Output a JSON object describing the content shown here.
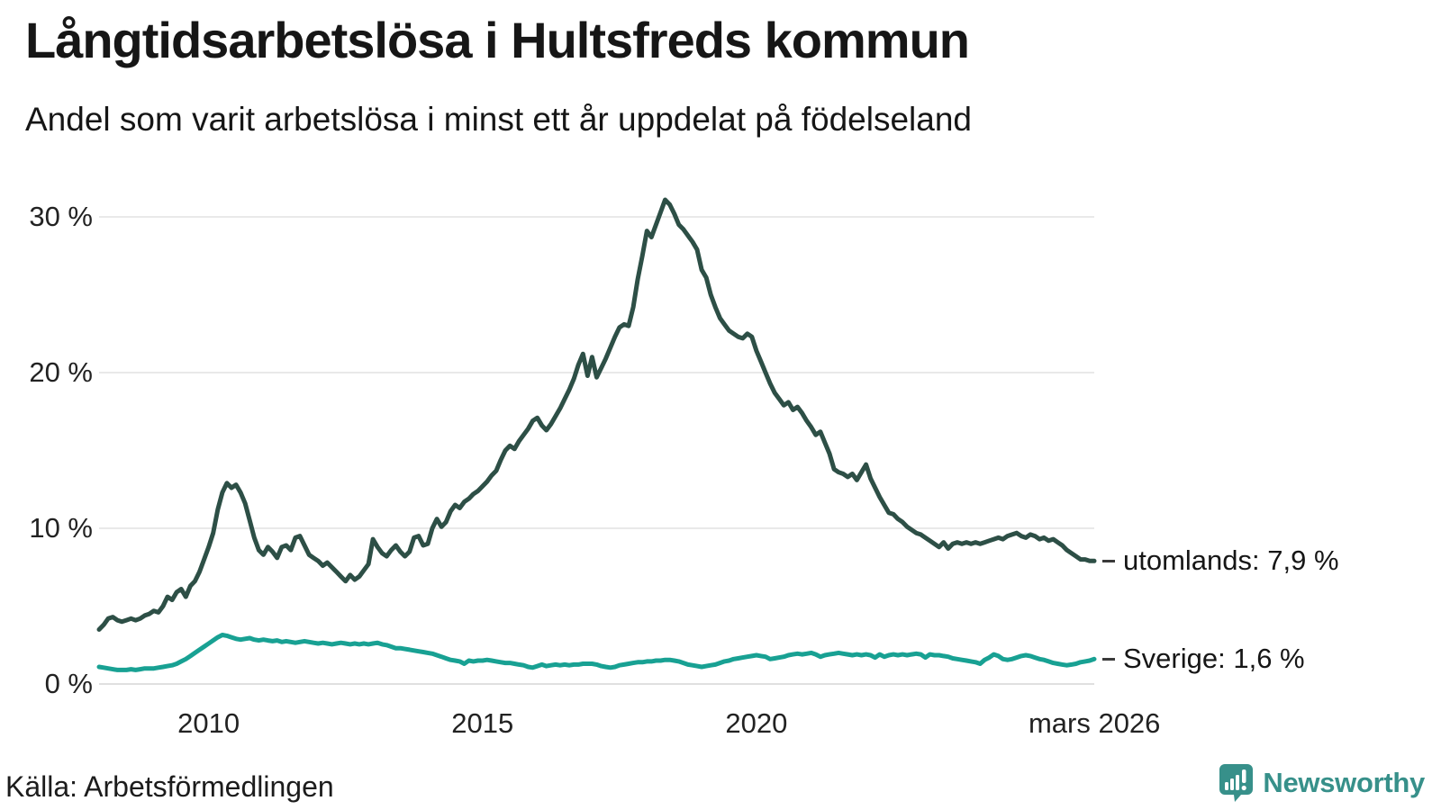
{
  "header": {
    "title": "Långtidsarbetslösa i Hultsfreds kommun",
    "subtitle": "Andel som varit arbetslösa i minst ett år uppdelat på födelseland"
  },
  "footer": {
    "source": "Källa: Arbetsförmedlingen",
    "brand": "Newsworthy"
  },
  "colors": {
    "utomlands_line": "#2d4f46",
    "sverige_line": "#18a193",
    "gridline": "#e9e9e9",
    "zero_gridline": "#e0e0e0",
    "brand_teal": "#37908a",
    "text": "#161616"
  },
  "chart_data": {
    "type": "line",
    "title": "Långtidsarbetslösa i Hultsfreds kommun",
    "subtitle": "Andel som varit arbetslösa i minst ett år uppdelat på födelseland",
    "xlabel": "",
    "ylabel": "",
    "grid": true,
    "legend_position": "right-end-labels",
    "ylim": [
      0,
      32
    ],
    "x_start_year": 2008,
    "points_per_year": 12,
    "x_end": "2026-03",
    "y_ticks": [
      {
        "value": 0,
        "label": "0 %"
      },
      {
        "value": 10,
        "label": "10 %"
      },
      {
        "value": 20,
        "label": "20 %"
      },
      {
        "value": 30,
        "label": "30 %"
      }
    ],
    "x_ticks": [
      {
        "t": 2010,
        "label": "2010"
      },
      {
        "t": 2015,
        "label": "2015"
      },
      {
        "t": 2020,
        "label": "2020"
      },
      {
        "t": 2026.17,
        "label": "mars 2026"
      }
    ],
    "series": [
      {
        "name": "utomlands",
        "end_label": "utomlands: 7,9 %",
        "last_value": 7.9,
        "color": "#2d4f46",
        "values": [
          3.5,
          3.8,
          4.2,
          4.3,
          4.1,
          4.0,
          4.1,
          4.2,
          4.1,
          4.2,
          4.4,
          4.5,
          4.7,
          4.6,
          5.0,
          5.6,
          5.4,
          5.9,
          6.1,
          5.6,
          6.3,
          6.6,
          7.2,
          8.0,
          8.8,
          9.7,
          11.2,
          12.3,
          12.9,
          12.6,
          12.8,
          12.3,
          11.6,
          10.5,
          9.4,
          8.6,
          8.3,
          8.8,
          8.5,
          8.1,
          8.8,
          8.9,
          8.6,
          9.4,
          9.5,
          8.9,
          8.3,
          8.1,
          7.9,
          7.6,
          7.8,
          7.5,
          7.2,
          6.9,
          6.6,
          7.0,
          6.7,
          6.9,
          7.3,
          7.7,
          9.3,
          8.8,
          8.4,
          8.2,
          8.6,
          8.9,
          8.5,
          8.2,
          8.5,
          9.4,
          9.5,
          8.9,
          9.0,
          10.0,
          10.6,
          10.1,
          10.4,
          11.1,
          11.5,
          11.3,
          11.7,
          11.9,
          12.2,
          12.4,
          12.7,
          13.0,
          13.4,
          13.7,
          14.4,
          15.0,
          15.3,
          15.1,
          15.6,
          16.0,
          16.4,
          16.9,
          17.1,
          16.6,
          16.3,
          16.7,
          17.2,
          17.7,
          18.3,
          18.9,
          19.6,
          20.5,
          21.2,
          19.8,
          21.0,
          19.7,
          20.3,
          20.9,
          21.6,
          22.3,
          22.9,
          23.1,
          23.0,
          24.2,
          26.0,
          27.5,
          29.1,
          28.7,
          29.5,
          30.3,
          31.1,
          30.8,
          30.2,
          29.5,
          29.2,
          28.8,
          28.4,
          27.9,
          26.6,
          26.1,
          25.0,
          24.2,
          23.5,
          23.1,
          22.7,
          22.5,
          22.3,
          22.2,
          22.5,
          22.3,
          21.4,
          20.7,
          20.0,
          19.3,
          18.7,
          18.3,
          17.9,
          18.1,
          17.6,
          17.8,
          17.4,
          16.9,
          16.5,
          16.0,
          16.2,
          15.5,
          14.8,
          13.8,
          13.6,
          13.5,
          13.3,
          13.5,
          13.1,
          13.6,
          14.1,
          13.2,
          12.6,
          12.0,
          11.5,
          11.0,
          10.9,
          10.6,
          10.4,
          10.1,
          9.9,
          9.7,
          9.6,
          9.4,
          9.2,
          9.0,
          8.8,
          9.1,
          8.7,
          9.0,
          9.1,
          9.0,
          9.1,
          9.0,
          9.1,
          9.0,
          9.1,
          9.2,
          9.3,
          9.4,
          9.3,
          9.5,
          9.6,
          9.7,
          9.5,
          9.4,
          9.6,
          9.5,
          9.3,
          9.4,
          9.2,
          9.3,
          9.1,
          8.9,
          8.6,
          8.4,
          8.2,
          8.0,
          8.0,
          7.9,
          7.9
        ]
      },
      {
        "name": "Sverige",
        "end_label": "Sverige: 1,6 %",
        "last_value": 1.6,
        "color": "#18a193",
        "values": [
          1.1,
          1.05,
          1.0,
          0.95,
          0.9,
          0.9,
          0.9,
          0.95,
          0.9,
          0.95,
          1.0,
          1.0,
          1.0,
          1.05,
          1.1,
          1.15,
          1.2,
          1.3,
          1.45,
          1.6,
          1.8,
          2.0,
          2.2,
          2.4,
          2.6,
          2.8,
          3.0,
          3.15,
          3.1,
          3.0,
          2.9,
          2.85,
          2.9,
          2.95,
          2.85,
          2.8,
          2.85,
          2.8,
          2.75,
          2.8,
          2.7,
          2.75,
          2.7,
          2.65,
          2.7,
          2.75,
          2.7,
          2.65,
          2.6,
          2.65,
          2.6,
          2.55,
          2.6,
          2.65,
          2.6,
          2.55,
          2.6,
          2.55,
          2.6,
          2.55,
          2.6,
          2.65,
          2.55,
          2.5,
          2.4,
          2.3,
          2.3,
          2.25,
          2.2,
          2.15,
          2.1,
          2.05,
          2.0,
          1.95,
          1.85,
          1.75,
          1.65,
          1.55,
          1.5,
          1.45,
          1.3,
          1.5,
          1.45,
          1.5,
          1.5,
          1.55,
          1.5,
          1.45,
          1.4,
          1.35,
          1.35,
          1.3,
          1.25,
          1.2,
          1.1,
          1.05,
          1.15,
          1.25,
          1.15,
          1.2,
          1.25,
          1.2,
          1.25,
          1.2,
          1.25,
          1.25,
          1.3,
          1.3,
          1.3,
          1.25,
          1.15,
          1.1,
          1.05,
          1.1,
          1.2,
          1.25,
          1.3,
          1.35,
          1.4,
          1.4,
          1.45,
          1.45,
          1.5,
          1.5,
          1.55,
          1.55,
          1.5,
          1.45,
          1.35,
          1.25,
          1.2,
          1.15,
          1.1,
          1.15,
          1.2,
          1.25,
          1.35,
          1.45,
          1.5,
          1.6,
          1.65,
          1.7,
          1.75,
          1.8,
          1.85,
          1.8,
          1.75,
          1.6,
          1.65,
          1.7,
          1.75,
          1.85,
          1.9,
          1.95,
          1.9,
          1.95,
          2.0,
          1.9,
          1.75,
          1.85,
          1.9,
          1.95,
          2.0,
          1.95,
          1.9,
          1.85,
          1.9,
          1.85,
          1.9,
          1.85,
          1.7,
          1.9,
          1.75,
          1.85,
          1.9,
          1.85,
          1.9,
          1.85,
          1.9,
          1.95,
          1.9,
          1.7,
          1.9,
          1.85,
          1.85,
          1.8,
          1.75,
          1.65,
          1.6,
          1.55,
          1.5,
          1.45,
          1.4,
          1.3,
          1.55,
          1.7,
          1.9,
          1.8,
          1.6,
          1.55,
          1.6,
          1.7,
          1.8,
          1.85,
          1.8,
          1.7,
          1.6,
          1.55,
          1.45,
          1.35,
          1.3,
          1.25,
          1.2,
          1.25,
          1.3,
          1.4,
          1.45,
          1.5,
          1.6
        ]
      }
    ]
  }
}
